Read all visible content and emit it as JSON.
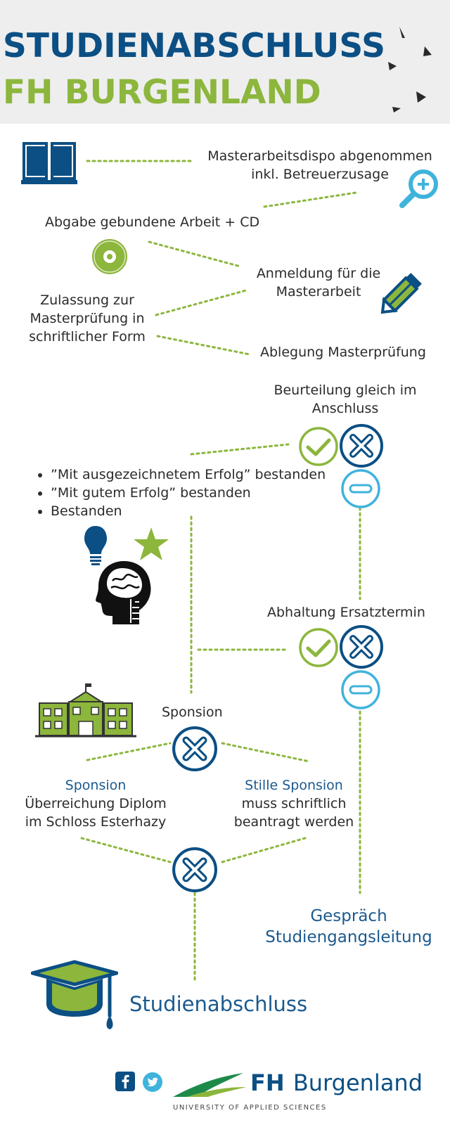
{
  "header": {
    "title_line1": "STUDIENABSCHLUSS",
    "title_line2": "FH BURGENLAND"
  },
  "steps": {
    "dispo_line1": "Masterarbeitsdispo abgenommen",
    "dispo_line2": "inkl. Betreuerzusage",
    "abgabe": "Abgabe gebundene Arbeit + CD",
    "anmeldung_line1": "Anmeldung für die",
    "anmeldung_line2": "Masterarbeit",
    "zulassung_line1": "Zulassung zur",
    "zulassung_line2": "Masterprüfung in",
    "zulassung_line3": "schriftlicher Form",
    "ablegung": "Ablegung Masterprüfung",
    "beurteilung_line1": "Beurteilung gleich im",
    "beurteilung_line2": "Anschluss",
    "abhaltung": "Abhaltung Ersatztermin",
    "sponsion": "Sponsion",
    "sponsion_a_title": "Sponsion",
    "sponsion_a_line1": "Überreichung Diplom",
    "sponsion_a_line2": "im Schloss Esterhazy",
    "sponsion_b_title": "Stille Sponsion",
    "sponsion_b_line1": "muss schriftlich",
    "sponsion_b_line2": "beantragt werden",
    "gespraech_line1": "Gespräch",
    "gespraech_line2": "Studiengangsleitung",
    "studienabschluss": "Studienabschluss"
  },
  "grades": [
    "”Mit ausgezeichnetem Erfolg” bestanden",
    "”Mit gutem Erfolg” bestanden",
    "Bestanden"
  ],
  "footer": {
    "logo_fh": "FH",
    "logo_name": "Burgenland",
    "logo_sub": "UNIVERSITY OF APPLIED SCIENCES"
  },
  "colors": {
    "blue": "#0b4f84",
    "green": "#8cb63c",
    "lightblue": "#3fb3dc",
    "text": "#2b2b2b"
  },
  "icons": [
    "book-icon",
    "magnifier-plus-icon",
    "cd-icon",
    "pencil-icon",
    "check-circle-icon",
    "x-circle-icon",
    "minus-circle-icon",
    "lightbulb-icon",
    "star-icon",
    "head-brain-icon",
    "school-building-icon",
    "graduation-cap-icon",
    "facebook-icon",
    "twitter-icon"
  ]
}
